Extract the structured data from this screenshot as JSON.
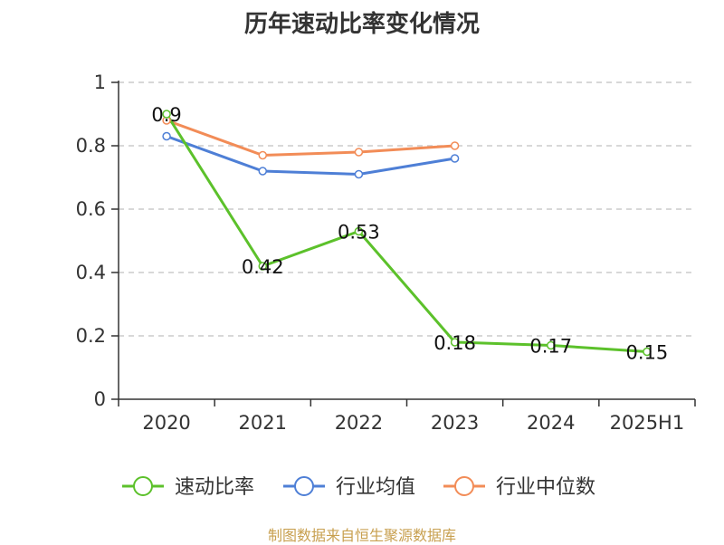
{
  "title": "历年速动比率变化情况",
  "source": "制图数据来自恒生聚源数据库",
  "chart_data": {
    "type": "line",
    "title": "历年速动比率变化情况",
    "categories": [
      "2020",
      "2021",
      "2022",
      "2023",
      "2024",
      "2025H1"
    ],
    "ylim": [
      0,
      1
    ],
    "yticks": [
      "0",
      "0.2",
      "0.4",
      "0.6",
      "0.8",
      "1"
    ],
    "ytick_values": [
      0,
      0.2,
      0.4,
      0.6,
      0.8,
      1
    ],
    "grid": true,
    "legend_position": "bottom",
    "series": [
      {
        "name": "速动比率",
        "color": "#5cc12b",
        "values": [
          0.9,
          0.42,
          0.53,
          0.18,
          0.17,
          0.15
        ],
        "labels": [
          "0.9",
          "0.42",
          "0.53",
          "0.18",
          "0.17",
          "0.15"
        ]
      },
      {
        "name": "行业均值",
        "color": "#4e7fd6",
        "values": [
          0.83,
          0.72,
          0.71,
          0.76,
          null,
          null
        ]
      },
      {
        "name": "行业中位数",
        "color": "#f28c57",
        "values": [
          0.88,
          0.77,
          0.78,
          0.8,
          null,
          null
        ]
      }
    ]
  }
}
